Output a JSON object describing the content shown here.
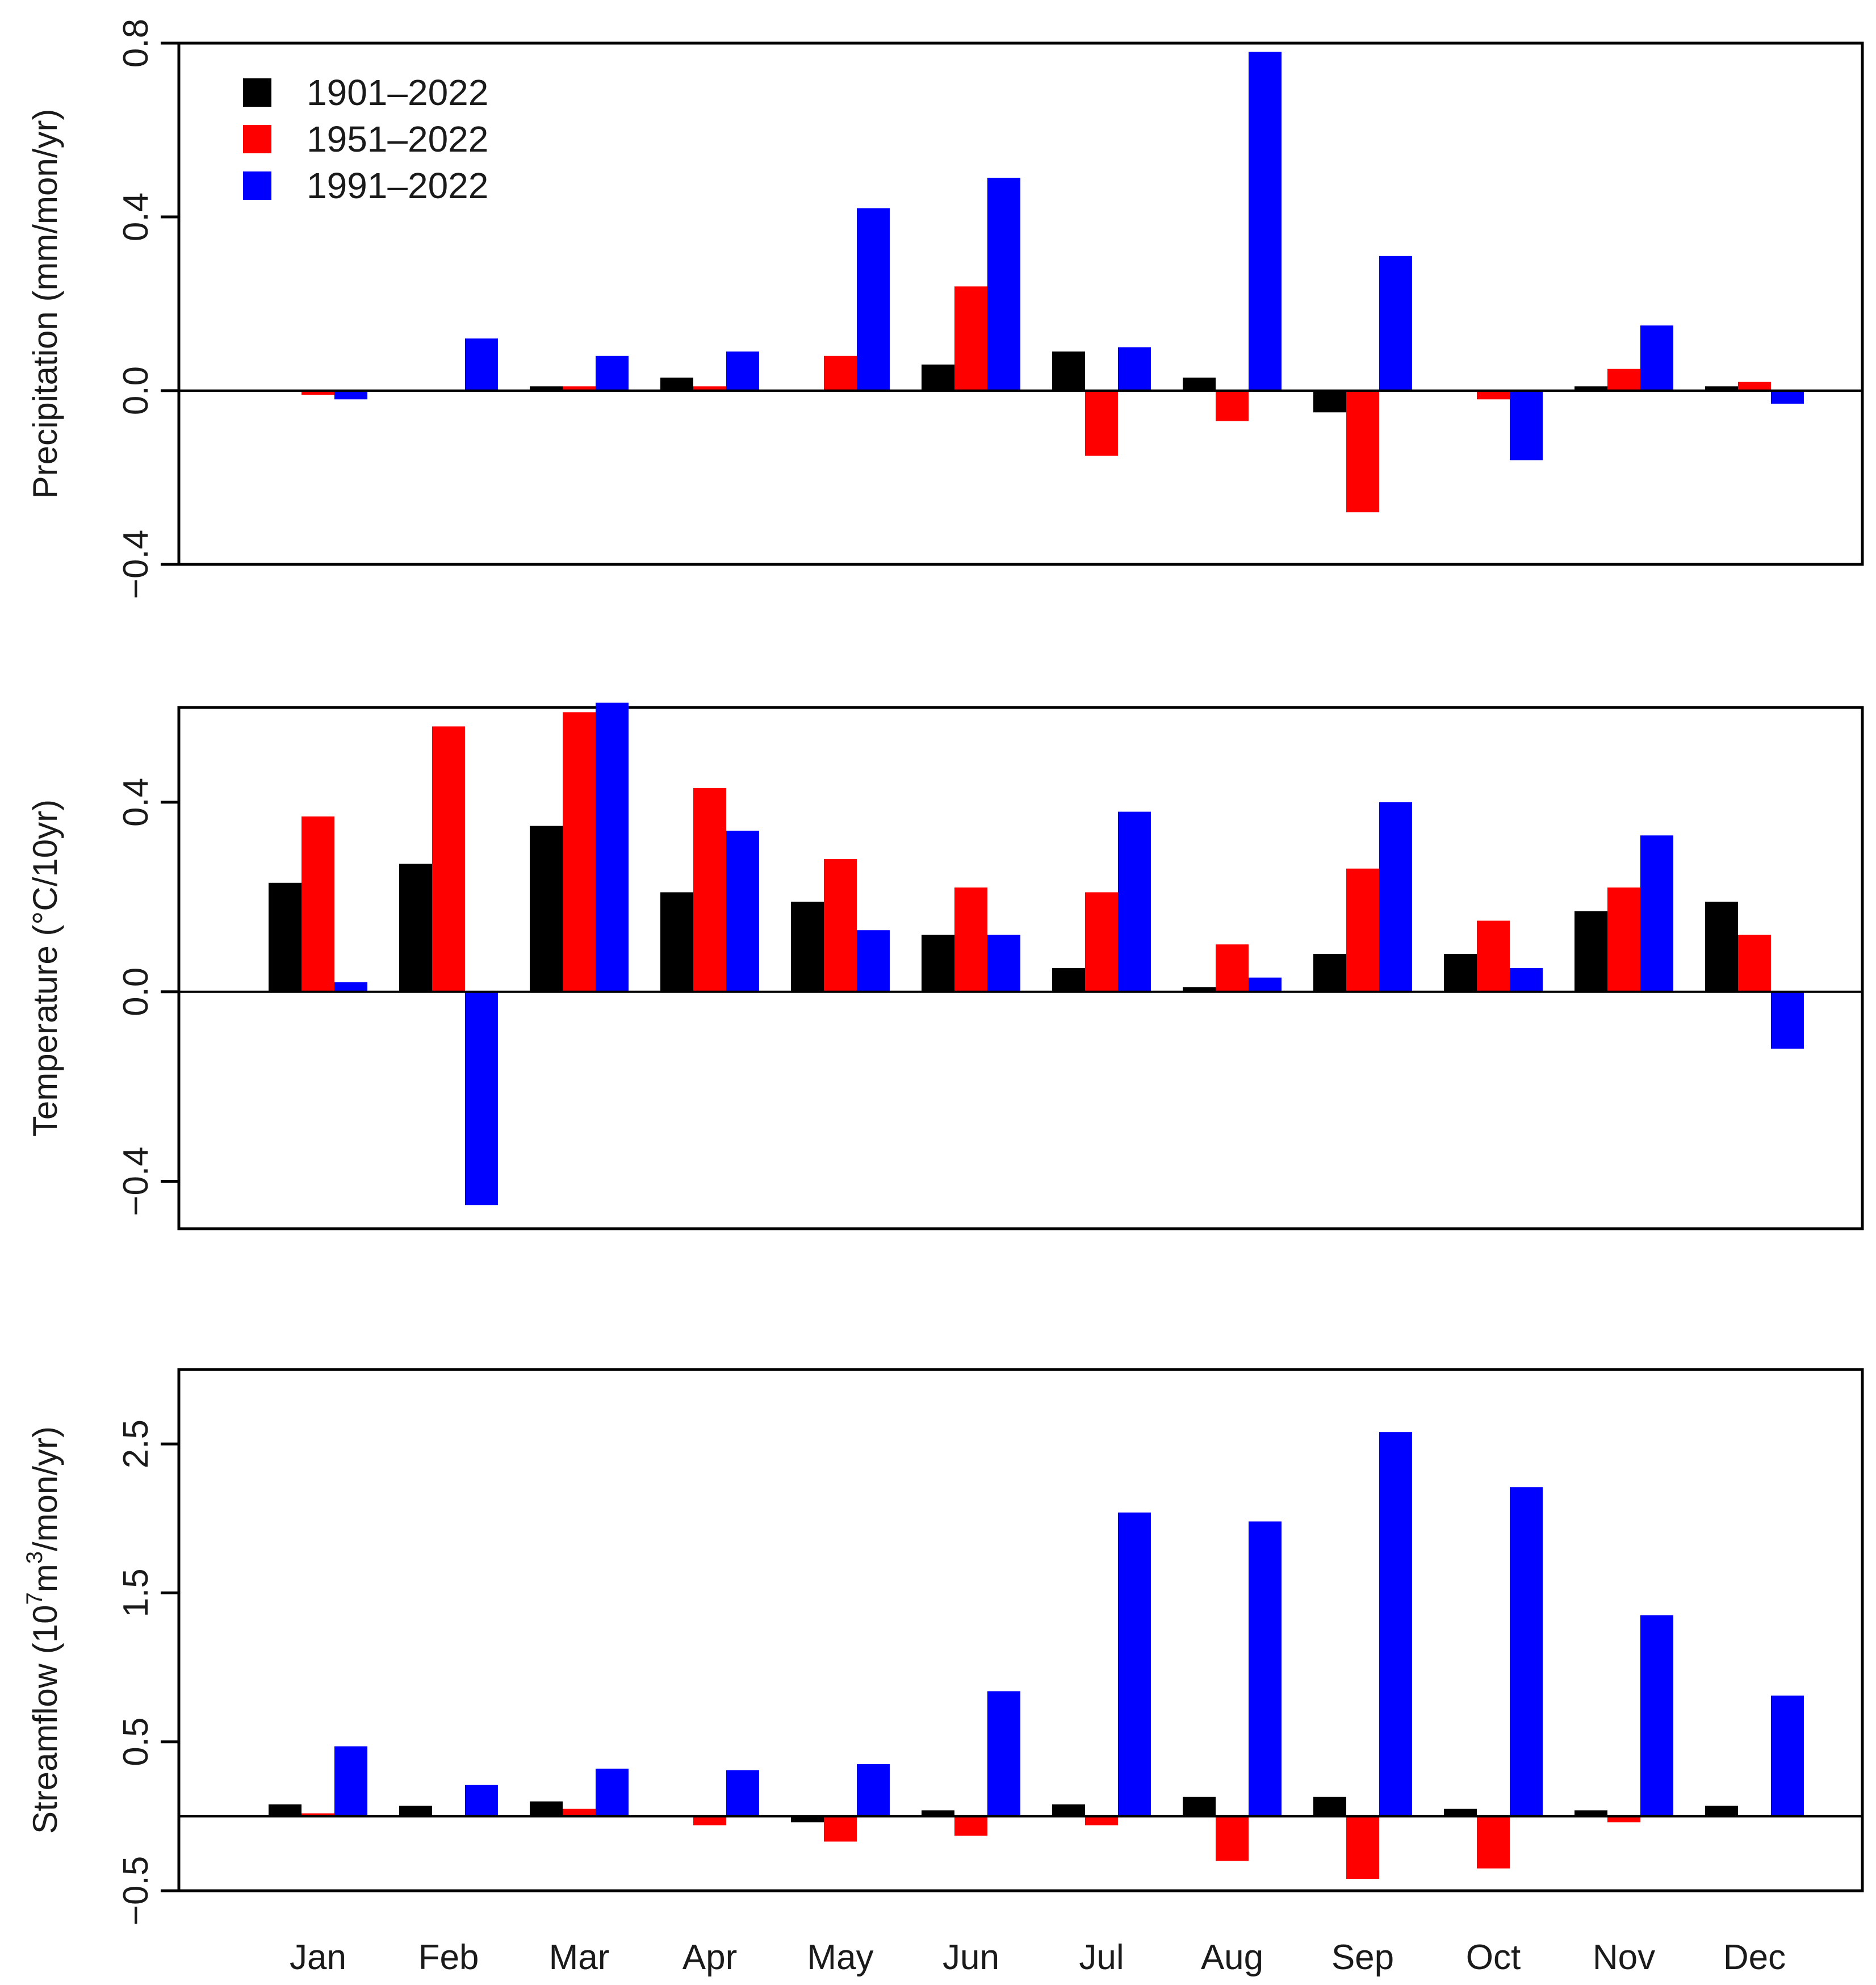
{
  "chart_data": [
    {
      "type": "bar",
      "ylabel": "Precipitation (mm/mon/yr)",
      "ylim": [
        -0.4,
        0.8
      ],
      "yticks": [
        "0.8",
        "0.4",
        "0.0",
        "−0.4"
      ],
      "ytick_values": [
        0.8,
        0.4,
        0.0,
        -0.4
      ],
      "legend": {
        "position": "top-left"
      },
      "categories": [
        "Jan",
        "Feb",
        "Mar",
        "Apr",
        "May",
        "Jun",
        "Jul",
        "Aug",
        "Sep",
        "Oct",
        "Nov",
        "Dec"
      ],
      "series": [
        {
          "name": "1901–2022",
          "color": "#000000",
          "values": [
            0.0,
            0.0,
            0.01,
            0.03,
            0.0,
            0.06,
            0.09,
            0.03,
            -0.05,
            0.0,
            0.01,
            0.01
          ]
        },
        {
          "name": "1951–2022",
          "color": "#ff0000",
          "values": [
            -0.01,
            0.0,
            0.01,
            0.01,
            0.08,
            0.24,
            -0.15,
            -0.07,
            -0.28,
            -0.02,
            0.05,
            0.02
          ]
        },
        {
          "name": "1991–2022",
          "color": "#0000ff",
          "values": [
            -0.02,
            0.12,
            0.08,
            0.09,
            0.42,
            0.49,
            0.1,
            0.78,
            0.31,
            -0.16,
            0.15,
            -0.03
          ]
        }
      ]
    },
    {
      "type": "bar",
      "ylabel": "Temperature (°C/10yr)",
      "ylim": [
        -0.5,
        0.6
      ],
      "yticks": [
        "0.4",
        "0.0",
        "−0.4"
      ],
      "ytick_values": [
        0.4,
        0.0,
        -0.4
      ],
      "categories": [
        "Jan",
        "Feb",
        "Mar",
        "Apr",
        "May",
        "Jun",
        "Jul",
        "Aug",
        "Sep",
        "Oct",
        "Nov",
        "Dec"
      ],
      "series": [
        {
          "name": "1901–2022",
          "color": "#000000",
          "values": [
            0.23,
            0.27,
            0.35,
            0.21,
            0.19,
            0.12,
            0.05,
            0.01,
            0.08,
            0.08,
            0.17,
            0.19
          ]
        },
        {
          "name": "1951–2022",
          "color": "#ff0000",
          "values": [
            0.37,
            0.56,
            0.59,
            0.43,
            0.28,
            0.22,
            0.21,
            0.1,
            0.26,
            0.15,
            0.22,
            0.12
          ]
        },
        {
          "name": "1991–2022",
          "color": "#0000ff",
          "values": [
            0.02,
            -0.45,
            0.61,
            0.34,
            0.13,
            0.12,
            0.38,
            0.03,
            0.4,
            0.05,
            0.33,
            -0.12
          ]
        }
      ]
    },
    {
      "type": "bar",
      "ylabel_prefix": "Streamflow (10",
      "ylabel_exp1": "7",
      "ylabel_mid": "m",
      "ylabel_exp2": "3",
      "ylabel_suffix": "/mon/yr)",
      "ylim": [
        -0.5,
        3.0
      ],
      "yticks": [
        "2.5",
        "1.5",
        "0.5",
        "−0.5"
      ],
      "ytick_values": [
        2.5,
        1.5,
        0.5,
        -0.5
      ],
      "categories": [
        "Jan",
        "Feb",
        "Mar",
        "Apr",
        "May",
        "Jun",
        "Jul",
        "Aug",
        "Sep",
        "Oct",
        "Nov",
        "Dec"
      ],
      "series": [
        {
          "name": "1901–2022",
          "color": "#000000",
          "values": [
            0.08,
            0.07,
            0.1,
            0.0,
            -0.04,
            0.04,
            0.08,
            0.13,
            0.13,
            0.05,
            0.04,
            0.07
          ]
        },
        {
          "name": "1951–2022",
          "color": "#ff0000",
          "values": [
            0.02,
            0.0,
            0.05,
            -0.06,
            -0.17,
            -0.13,
            -0.06,
            -0.3,
            -0.42,
            -0.35,
            -0.04,
            0.0
          ]
        },
        {
          "name": "1991–2022",
          "color": "#0000ff",
          "values": [
            0.47,
            0.21,
            0.32,
            0.31,
            0.35,
            0.84,
            2.04,
            1.98,
            2.58,
            2.21,
            1.35,
            0.81
          ]
        }
      ]
    }
  ]
}
